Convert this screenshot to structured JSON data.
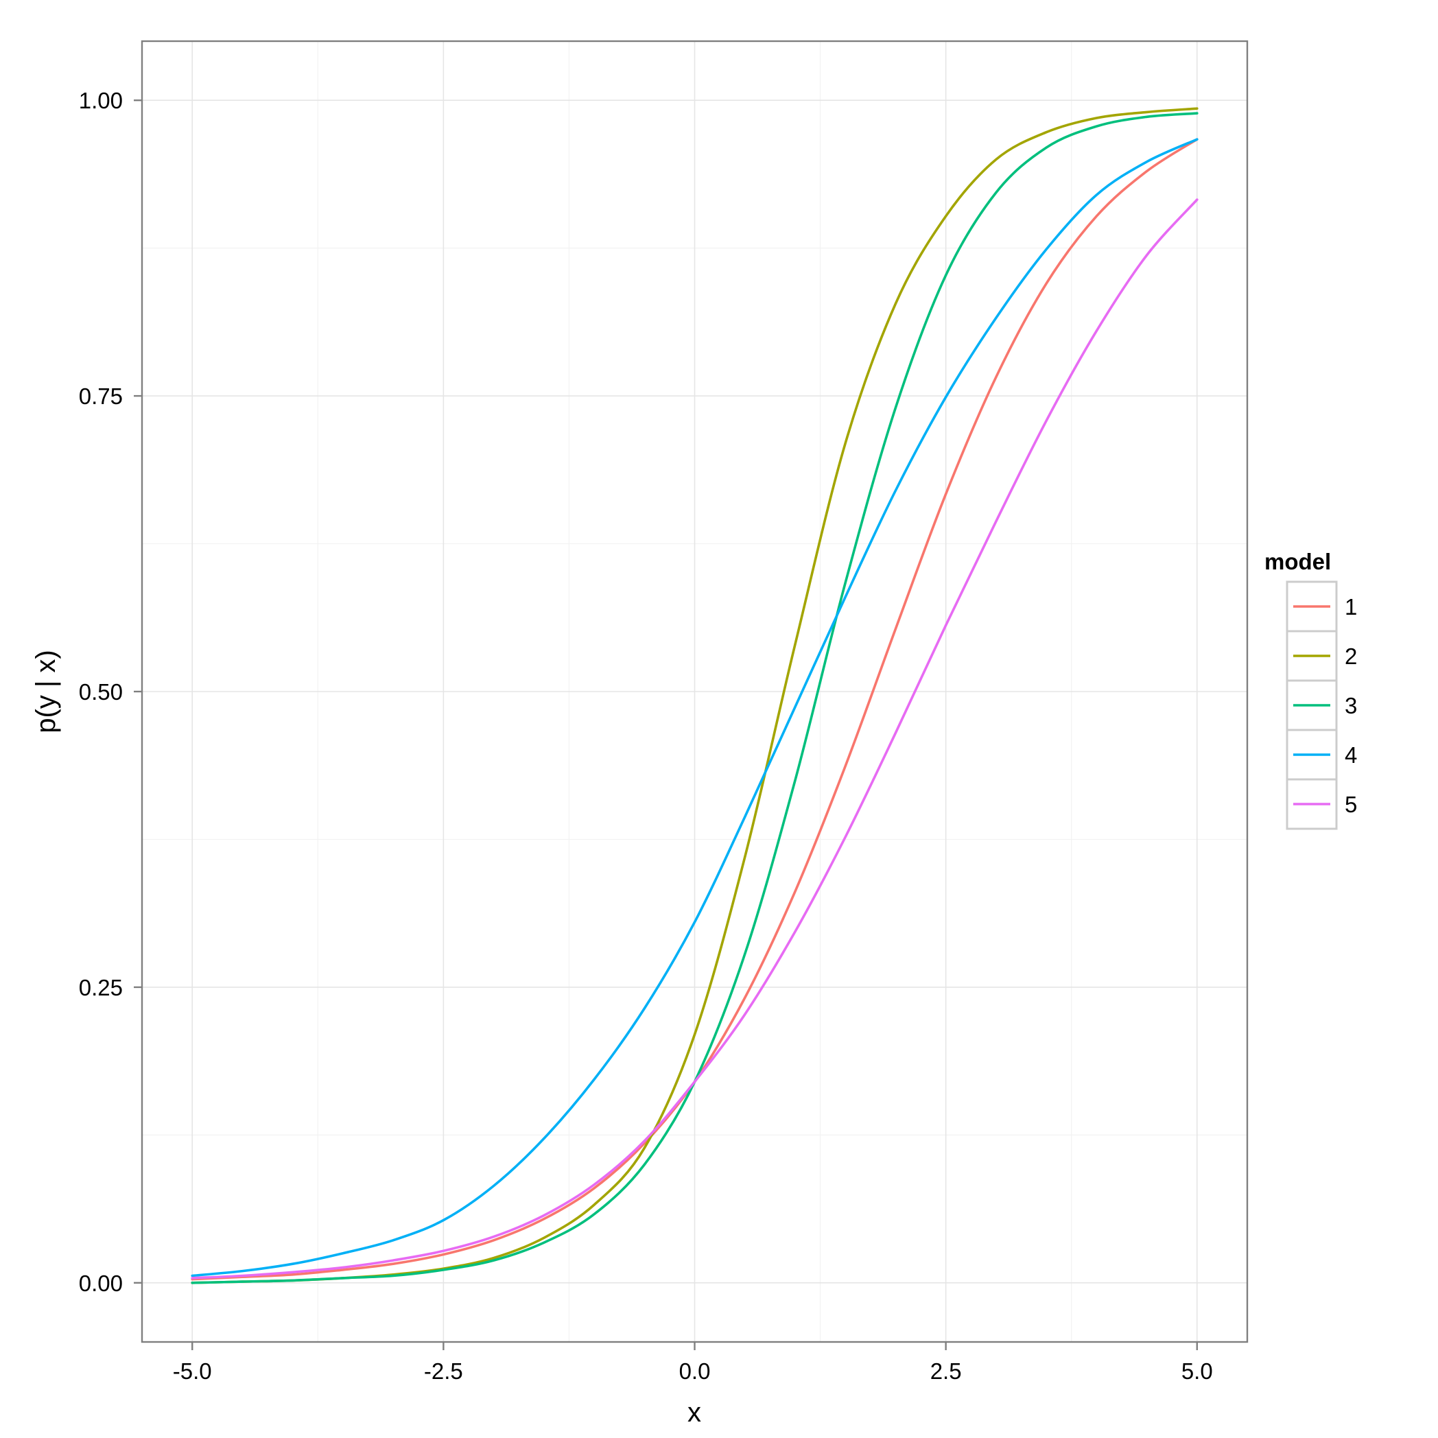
{
  "chart_data": {
    "type": "line",
    "xlabel": "x",
    "ylabel": "p(y | x)",
    "xlim": [
      -5.5,
      5.5
    ],
    "ylim": [
      -0.05,
      1.05
    ],
    "x_ticks": [
      -5.0,
      -2.5,
      0.0,
      2.5,
      5.0
    ],
    "x_tick_labels": [
      "-5.0",
      "-2.5",
      "0.0",
      "2.5",
      "5.0"
    ],
    "y_ticks": [
      0.0,
      0.25,
      0.5,
      0.75,
      1.0
    ],
    "y_tick_labels": [
      "0.00",
      "0.25",
      "0.50",
      "0.75",
      "1.00"
    ],
    "grid": true,
    "legend": {
      "title": "model",
      "position": "right"
    },
    "x": [
      -5.0,
      -4.5,
      -4.0,
      -3.5,
      -3.0,
      -2.5,
      -2.0,
      -1.5,
      -1.0,
      -0.5,
      0.0,
      0.5,
      1.0,
      1.5,
      2.0,
      2.5,
      3.0,
      3.5,
      4.0,
      4.5,
      5.0
    ],
    "series": [
      {
        "name": "1",
        "color": "#F8766D",
        "values": [
          0.003,
          0.005,
          0.007,
          0.011,
          0.016,
          0.024,
          0.036,
          0.054,
          0.08,
          0.118,
          0.17,
          0.241,
          0.331,
          0.437,
          0.553,
          0.667,
          0.766,
          0.845,
          0.902,
          0.94,
          0.967
        ]
      },
      {
        "name": "2",
        "color": "#A3A500",
        "values": [
          0.0,
          0.001,
          0.002,
          0.004,
          0.007,
          0.012,
          0.021,
          0.038,
          0.066,
          0.114,
          0.21,
          0.36,
          0.54,
          0.71,
          0.828,
          0.902,
          0.95,
          0.973,
          0.985,
          0.99,
          0.993
        ]
      },
      {
        "name": "3",
        "color": "#00BF7D",
        "values": [
          0.0,
          0.001,
          0.002,
          0.004,
          0.006,
          0.011,
          0.019,
          0.034,
          0.058,
          0.1,
          0.17,
          0.278,
          0.425,
          0.592,
          0.74,
          0.852,
          0.922,
          0.96,
          0.978,
          0.986,
          0.989
        ]
      },
      {
        "name": "4",
        "color": "#00B0F6",
        "values": [
          0.006,
          0.01,
          0.016,
          0.025,
          0.036,
          0.053,
          0.082,
          0.122,
          0.172,
          0.232,
          0.305,
          0.394,
          0.487,
          0.58,
          0.67,
          0.749,
          0.816,
          0.874,
          0.92,
          0.948,
          0.967
        ]
      },
      {
        "name": "5",
        "color": "#E76BF3",
        "values": [
          0.004,
          0.006,
          0.009,
          0.013,
          0.019,
          0.027,
          0.039,
          0.057,
          0.083,
          0.12,
          0.17,
          0.227,
          0.297,
          0.377,
          0.465,
          0.556,
          0.644,
          0.729,
          0.805,
          0.869,
          0.916
        ]
      }
    ]
  }
}
